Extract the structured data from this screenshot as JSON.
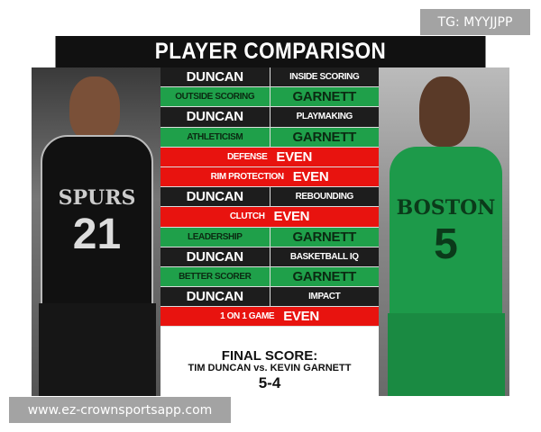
{
  "title": "PLAYER COMPARISON",
  "left_player": {
    "team_text": "SPURS",
    "number": "21",
    "jersey_color": "#111111"
  },
  "right_player": {
    "team_text": "BOSTON",
    "number": "5",
    "jersey_color": "#1d9a4a"
  },
  "colors": {
    "duncan_row": "#1d1d1d",
    "garnett_row": "#1fa04a",
    "even_row": "#e8130f"
  },
  "rows": [
    {
      "type": "duncan",
      "winner": "DUNCAN",
      "category": "INSIDE SCORING"
    },
    {
      "type": "garnett",
      "category": "OUTSIDE SCORING",
      "winner": "GARNETT"
    },
    {
      "type": "duncan",
      "winner": "DUNCAN",
      "category": "PLAYMAKING"
    },
    {
      "type": "garnett",
      "category": "ATHLETICISM",
      "winner": "GARNETT"
    },
    {
      "type": "even",
      "category": "DEFENSE",
      "winner": "EVEN"
    },
    {
      "type": "even",
      "category": "RIM PROTECTION",
      "winner": "EVEN"
    },
    {
      "type": "duncan",
      "winner": "DUNCAN",
      "category": "REBOUNDING"
    },
    {
      "type": "even",
      "category": "CLUTCH",
      "winner": "EVEN"
    },
    {
      "type": "garnett",
      "category": "LEADERSHIP",
      "winner": "GARNETT"
    },
    {
      "type": "duncan",
      "winner": "DUNCAN",
      "category": "BASKETBALL IQ"
    },
    {
      "type": "garnett",
      "category": "BETTER SCORER",
      "winner": "GARNETT"
    },
    {
      "type": "duncan",
      "winner": "DUNCAN",
      "category": "IMPACT"
    },
    {
      "type": "even",
      "category": "1 ON 1 GAME",
      "winner": "EVEN"
    }
  ],
  "footer": {
    "label": "FINAL SCORE:",
    "matchup": "TIM DUNCAN vs. KEVIN GARNETT",
    "score": "5-4"
  },
  "watermarks": {
    "top": "TG: MYYJJPP",
    "bottom": "www.ez-crownsportsapp.com"
  }
}
